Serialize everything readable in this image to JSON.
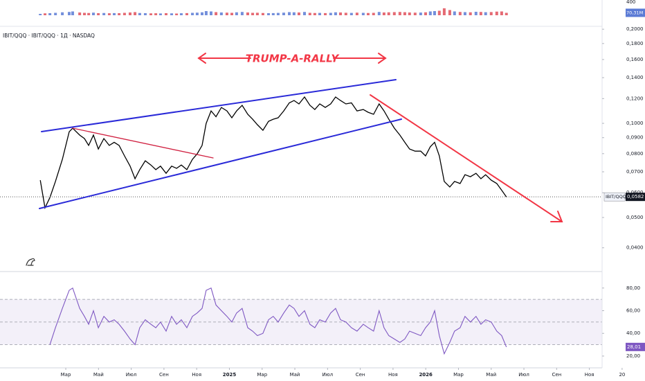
{
  "chart_data": {
    "type": "line",
    "header": "IBIT/QQQ · IBIT/QQQ · 1Д · NASDAQ",
    "annotation": "TRUMP-A-RALLY",
    "log_scale": true,
    "xlim": [
      -2.02,
      37.4
    ],
    "xticks": [
      {
        "value": 2,
        "label": "Мар"
      },
      {
        "value": 4,
        "label": "Май"
      },
      {
        "value": 6,
        "label": "Июл"
      },
      {
        "value": 8,
        "label": "Сен"
      },
      {
        "value": 10,
        "label": "Ноя"
      },
      {
        "value": 12,
        "label": "2025"
      },
      {
        "value": 14,
        "label": "Мар"
      },
      {
        "value": 16,
        "label": "Май"
      },
      {
        "value": 18,
        "label": "Июл"
      },
      {
        "value": 20,
        "label": "Сен"
      },
      {
        "value": 22,
        "label": "Ноя"
      },
      {
        "value": 24,
        "label": "2026"
      },
      {
        "value": 26,
        "label": "Мар"
      },
      {
        "value": 28,
        "label": "Май"
      },
      {
        "value": 30,
        "label": "Июл"
      },
      {
        "value": 32,
        "label": "Сен"
      },
      {
        "value": 34,
        "label": "Ноя"
      },
      {
        "value": 36,
        "label": "20"
      }
    ],
    "ylim": [
      0.0348,
      0.248
    ],
    "yticks": [
      {
        "value": 0.2,
        "label": "0,2000"
      },
      {
        "value": 0.18,
        "label": "0,1800"
      },
      {
        "value": 0.16,
        "label": "0,1600"
      },
      {
        "value": 0.14,
        "label": "0,1400"
      },
      {
        "value": 0.12,
        "label": "0,1200"
      },
      {
        "value": 0.1,
        "label": "0,1000"
      },
      {
        "value": 0.09,
        "label": "0,0900"
      },
      {
        "value": 0.08,
        "label": "0,0800"
      },
      {
        "value": 0.07,
        "label": "0,0700"
      },
      {
        "value": 0.06,
        "label": "0,0600"
      },
      {
        "value": 0.05,
        "label": "0,0500"
      },
      {
        "value": 0.04,
        "label": "0,0400"
      }
    ],
    "x": [
      0.44,
      0.73,
      1.03,
      1.37,
      1.79,
      2.21,
      2.42,
      2.85,
      3.14,
      3.4,
      3.69,
      3.99,
      4.33,
      4.66,
      4.96,
      5.26,
      5.59,
      5.93,
      6.23,
      6.52,
      6.86,
      7.2,
      7.5,
      7.79,
      8.13,
      8.47,
      8.77,
      9.06,
      9.4,
      9.74,
      10.03,
      10.33,
      10.58,
      10.88,
      11.18,
      11.51,
      11.85,
      12.15,
      12.44,
      12.78,
      13.12,
      13.42,
      13.71,
      14.05,
      14.39,
      14.68,
      14.98,
      15.32,
      15.66,
      15.95,
      16.25,
      16.59,
      16.92,
      17.22,
      17.52,
      17.86,
      18.19,
      18.49,
      18.79,
      19.12,
      19.46,
      19.8,
      20.18,
      20.48,
      20.81,
      21.15,
      21.45,
      21.74,
      22.08,
      22.42,
      22.72,
      23.01,
      23.35,
      23.69,
      23.99,
      24.28,
      24.54,
      24.83,
      25.13,
      25.47,
      25.76,
      26.1,
      26.4,
      26.73,
      27.07,
      27.37,
      27.66,
      28.0,
      28.34,
      28.64,
      28.93
    ],
    "series": [
      {
        "name": "IBIT/QQQ",
        "color": "#000000",
        "values": [
          0.0658,
          0.0537,
          0.0579,
          0.0652,
          0.0767,
          0.094,
          0.0965,
          0.0917,
          0.0894,
          0.085,
          0.0917,
          0.0828,
          0.0894,
          0.085,
          0.087,
          0.085,
          0.0787,
          0.073,
          0.0665,
          0.0711,
          0.0759,
          0.0736,
          0.0711,
          0.073,
          0.0692,
          0.073,
          0.0718,
          0.0736,
          0.0711,
          0.0767,
          0.0799,
          0.085,
          0.1,
          0.1096,
          0.105,
          0.1124,
          0.1096,
          0.1042,
          0.1096,
          0.1142,
          0.1069,
          0.1031,
          0.099,
          0.095,
          0.1015,
          0.1031,
          0.1042,
          0.1096,
          0.1163,
          0.1183,
          0.1154,
          0.1214,
          0.1142,
          0.1107,
          0.1154,
          0.1124,
          0.1154,
          0.1214,
          0.1183,
          0.1154,
          0.1163,
          0.1096,
          0.1107,
          0.1085,
          0.1069,
          0.1154,
          0.1096,
          0.1031,
          0.0965,
          0.0917,
          0.087,
          0.0828,
          0.0815,
          0.0815,
          0.0787,
          0.0842,
          0.087,
          0.0787,
          0.0652,
          0.0626,
          0.0652,
          0.0642,
          0.0685,
          0.0675,
          0.0692,
          0.0665,
          0.0685,
          0.0658,
          0.0642,
          0.0611,
          0.0582
        ],
        "last_label": {
          "value": 0.0582,
          "label": "0,0582"
        }
      }
    ],
    "volume": {
      "color_up": "#5b7bd5",
      "color_down": "#e0505a",
      "ylim": [
        0,
        400
      ],
      "yticks": [
        400
      ],
      "values": [
        40,
        55,
        60,
        70,
        85,
        95,
        110,
        80,
        70,
        65,
        75,
        60,
        65,
        58,
        62,
        60,
        70,
        80,
        90,
        65,
        60,
        55,
        58,
        52,
        60,
        55,
        50,
        58,
        62,
        70,
        75,
        85,
        120,
        110,
        90,
        80,
        75,
        70,
        85,
        95,
        80,
        70,
        72,
        65,
        60,
        62,
        68,
        75,
        90,
        85,
        80,
        95,
        70,
        65,
        68,
        62,
        70,
        85,
        80,
        72,
        68,
        75,
        70,
        65,
        70,
        95,
        80,
        85,
        90,
        95,
        88,
        80,
        75,
        78,
        85,
        110,
        120,
        130,
        200,
        150,
        110,
        95,
        90,
        85,
        100,
        95,
        88,
        92,
        105,
        110,
        70.31
      ],
      "last_label": {
        "value": 70.31,
        "label": "70,31M"
      }
    },
    "rsi": {
      "color": "#7e57c2",
      "ylim": [
        10.2,
        92.7
      ],
      "bands": [
        30,
        70
      ],
      "midline": 50,
      "yticks": [
        {
          "value": 80,
          "label": "80,00"
        },
        {
          "value": 60,
          "label": "60,00"
        },
        {
          "value": 40,
          "label": "40,00"
        },
        {
          "value": 20,
          "label": "20,00"
        }
      ],
      "values": [
        null,
        null,
        30,
        45,
        62,
        78,
        80,
        62,
        55,
        48,
        60,
        45,
        55,
        50,
        52,
        48,
        42,
        35,
        30,
        45,
        52,
        48,
        45,
        50,
        42,
        55,
        48,
        52,
        45,
        55,
        58,
        62,
        78,
        80,
        65,
        60,
        55,
        50,
        58,
        62,
        45,
        42,
        38,
        40,
        52,
        55,
        50,
        58,
        65,
        62,
        55,
        60,
        48,
        45,
        52,
        50,
        58,
        62,
        52,
        50,
        45,
        42,
        48,
        45,
        42,
        60,
        45,
        38,
        35,
        32,
        35,
        42,
        40,
        38,
        45,
        50,
        60,
        38,
        22,
        32,
        42,
        45,
        55,
        50,
        55,
        48,
        52,
        50,
        42,
        38,
        28.01
      ],
      "last_label": {
        "value": 28.01,
        "label": "28,01"
      }
    }
  }
}
